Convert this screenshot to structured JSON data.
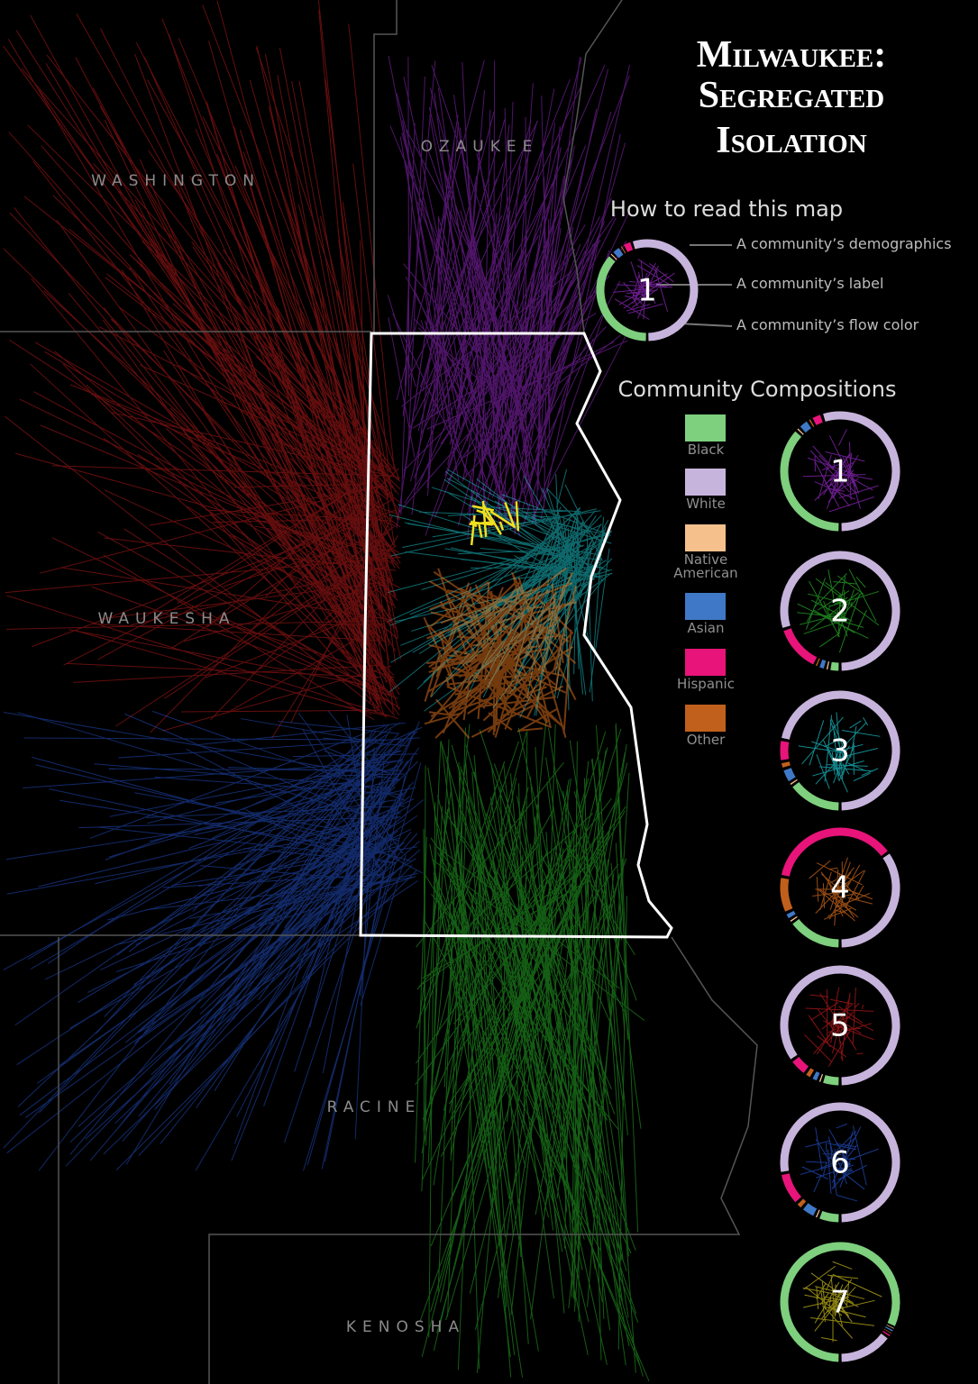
{
  "title": [
    "Milwaukee:",
    "Segregated",
    "Isolation"
  ],
  "counties": [
    "WASHINGTON",
    "OZAUKEE",
    "WAUKESHA",
    "RACINE",
    "KENOSHA"
  ],
  "how_to_read": {
    "heading": "How to read this map",
    "example_label": "1",
    "notes": [
      "A community’s demographics",
      "A community’s label",
      "A community’s flow color"
    ]
  },
  "compositions": {
    "heading": "Community Compositions",
    "groups": [
      {
        "name": "Black",
        "color": "#7ecf7e"
      },
      {
        "name": "White",
        "color": "#c7b4dc"
      },
      {
        "name": "Native American",
        "color": "#f6c08c"
      },
      {
        "name": "Asian",
        "color": "#3f78c6"
      },
      {
        "name": "Hispanic",
        "color": "#e8147a"
      },
      {
        "name": "Other",
        "color": "#c0601c"
      }
    ],
    "communities": [
      {
        "label": "1",
        "flow_color": "#b030e8",
        "shares": [
          37,
          55,
          1,
          3,
          3,
          1
        ]
      },
      {
        "label": "2",
        "flow_color": "#30d030",
        "shares": [
          3,
          80,
          1,
          2,
          13,
          1
        ]
      },
      {
        "label": "3",
        "flow_color": "#20e8f0",
        "shares": [
          15,
          72,
          1,
          4,
          6,
          2
        ]
      },
      {
        "label": "4",
        "flow_color": "#ff8020",
        "shares": [
          15,
          35,
          1,
          2,
          37,
          10
        ]
      },
      {
        "label": "5",
        "flow_color": "#e02020",
        "shares": [
          5,
          85,
          1,
          2,
          5,
          2
        ]
      },
      {
        "label": "6",
        "flow_color": "#2a5ee8",
        "shares": [
          6,
          78,
          1,
          4,
          9,
          2
        ]
      },
      {
        "label": "7",
        "flow_color": "#f0e020",
        "shares": [
          82,
          15,
          0.5,
          1,
          1,
          0.5
        ]
      }
    ]
  }
}
